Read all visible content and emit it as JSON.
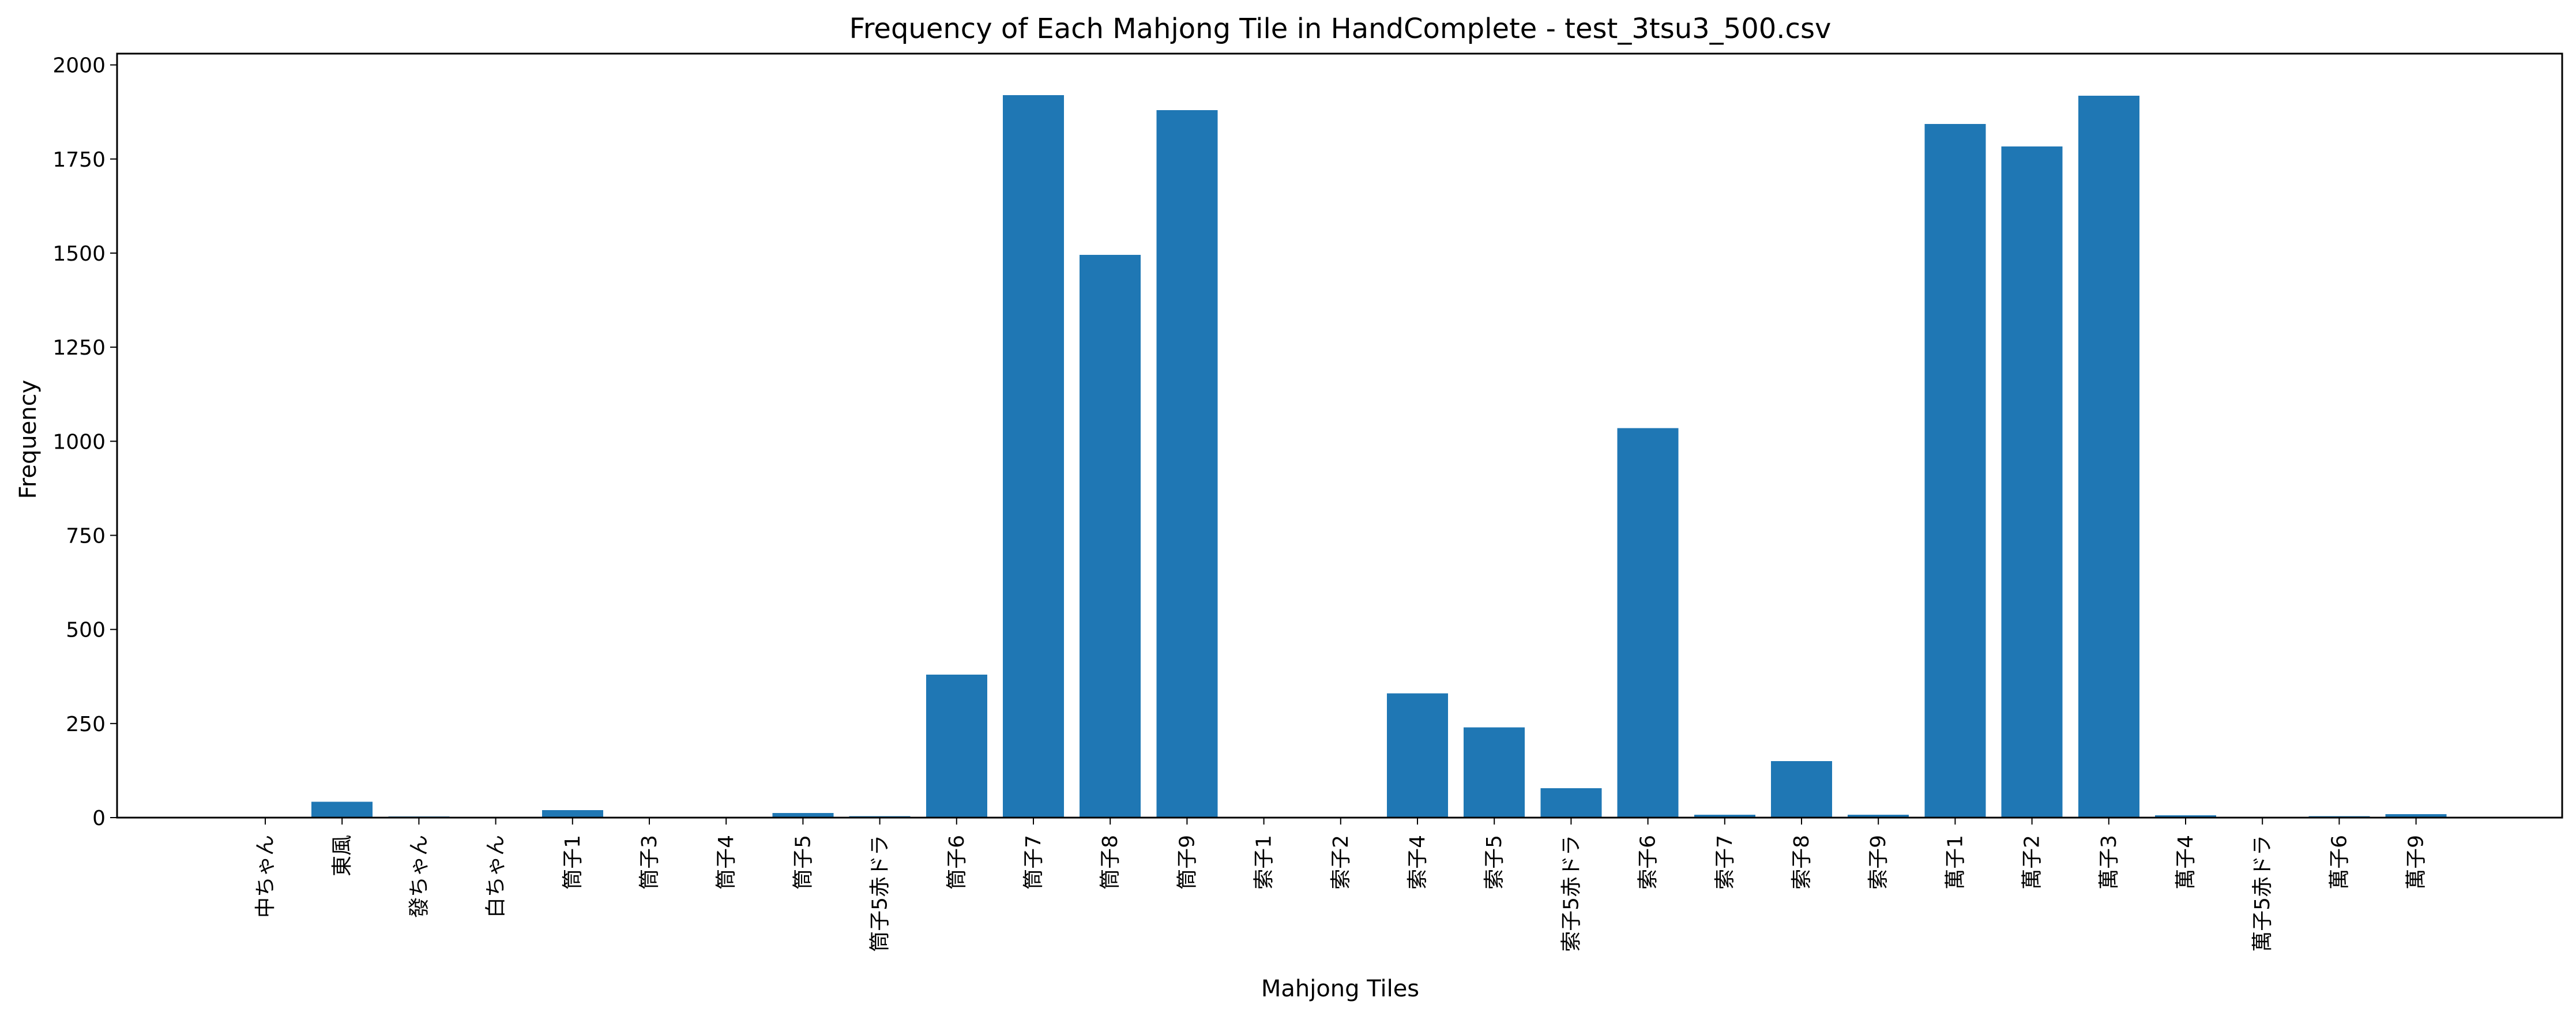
{
  "chart_data": {
    "type": "bar",
    "title": "Frequency of Each Mahjong Tile in HandComplete - test_3tsu3_500.csv",
    "xlabel": "Mahjong Tiles",
    "ylabel": "Frequency",
    "ylim": [
      0,
      2030
    ],
    "yticks": [
      0,
      250,
      500,
      750,
      1000,
      1250,
      1500,
      1750,
      2000
    ],
    "grid": false,
    "legend": "none",
    "bar_color": "#1f77b4",
    "categories": [
      "中ちゃん",
      "東風",
      "發ちゃん",
      "白ちゃん",
      "筒子1",
      "筒子3",
      "筒子4",
      "筒子5",
      "筒子5赤ドラ",
      "筒子6",
      "筒子7",
      "筒子8",
      "筒子9",
      "索子1",
      "索子2",
      "索子4",
      "索子5",
      "索子5赤ドラ",
      "索子6",
      "索子7",
      "索子8",
      "索子9",
      "萬子1",
      "萬子2",
      "萬子3",
      "萬子4",
      "萬子5赤ドラ",
      "萬子6",
      "萬子9"
    ],
    "values": [
      1,
      42,
      3,
      1,
      20,
      2,
      2,
      12,
      4,
      380,
      1920,
      1495,
      1880,
      2,
      2,
      330,
      240,
      78,
      1035,
      8,
      150,
      8,
      1843,
      1783,
      1918,
      6,
      1,
      4,
      9
    ]
  }
}
